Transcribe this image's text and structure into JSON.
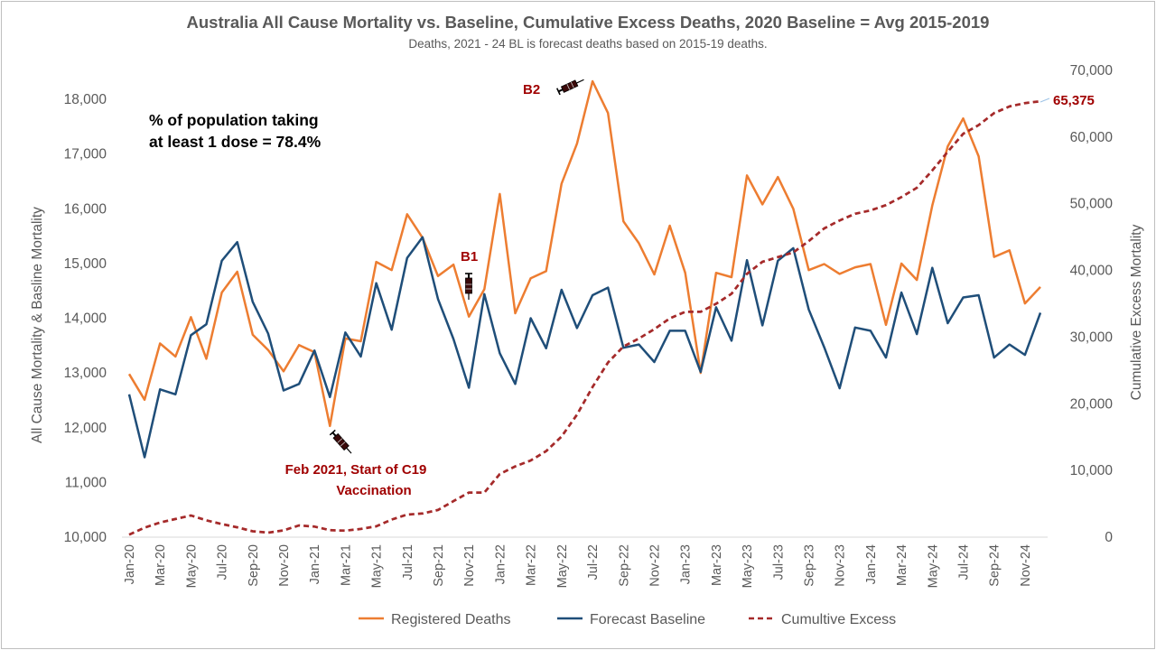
{
  "chart_data": {
    "type": "line",
    "title": "Australia All Cause Mortality vs. Baseline, Cumulative Excess Deaths, 2020 Baseline = Avg 2015-2019",
    "subtitle": "Deaths, 2021 - 24 BL is forecast deaths based on 2015-19 deaths.",
    "ylabel": "All Cause Mortality & Basline Mortality",
    "y2label": "Cumulative Excess Mortality",
    "ylim": [
      10000,
      18500
    ],
    "y2lim": [
      0,
      70000
    ],
    "yticks": [
      "10,000",
      "11,000",
      "12,000",
      "13,000",
      "14,000",
      "15,000",
      "16,000",
      "17,000",
      "18,000"
    ],
    "y2ticks": [
      "0",
      "10,000",
      "20,000",
      "30,000",
      "40,000",
      "50,000",
      "60,000",
      "70,000"
    ],
    "grid": false,
    "legend_position": "bottom",
    "x": [
      "Jan-20",
      "Feb-20",
      "Mar-20",
      "Apr-20",
      "May-20",
      "Jun-20",
      "Jul-20",
      "Aug-20",
      "Sep-20",
      "Oct-20",
      "Nov-20",
      "Dec-20",
      "Jan-21",
      "Feb-21",
      "Mar-21",
      "Apr-21",
      "May-21",
      "Jun-21",
      "Jul-21",
      "Aug-21",
      "Sep-21",
      "Oct-21",
      "Nov-21",
      "Dec-21",
      "Jan-22",
      "Feb-22",
      "Mar-22",
      "Apr-22",
      "May-22",
      "Jun-22",
      "Jul-22",
      "Aug-22",
      "Sep-22",
      "Oct-22",
      "Nov-22",
      "Dec-22",
      "Jan-23",
      "Feb-23",
      "Mar-23",
      "Apr-23",
      "May-23",
      "Jun-23",
      "Jul-23",
      "Aug-23",
      "Sep-23",
      "Oct-23",
      "Nov-23",
      "Dec-23",
      "Jan-24",
      "Feb-24",
      "Mar-24",
      "Apr-24",
      "May-24",
      "Jun-24",
      "Jul-24",
      "Aug-24",
      "Sep-24",
      "Oct-24",
      "Nov-24",
      "Dec-24"
    ],
    "xticks": [
      "Jan-20",
      "Mar-20",
      "May-20",
      "Jul-20",
      "Sep-20",
      "Nov-20",
      "Jan-21",
      "Mar-21",
      "May-21",
      "Jul-21",
      "Sep-21",
      "Nov-21",
      "Jan-22",
      "Mar-22",
      "May-22",
      "Jul-22",
      "Sep-22",
      "Nov-22",
      "Jan-23",
      "Mar-23",
      "May-23",
      "Jul-23",
      "Sep-23",
      "Nov-23",
      "Jan-24",
      "Mar-24",
      "May-24",
      "Jul-24",
      "Sep-24",
      "Nov-24"
    ],
    "series": [
      {
        "name": "Registered Deaths",
        "axis": "left",
        "color": "#ed7d31",
        "style": "solid",
        "values": [
          12980,
          12510,
          13540,
          13300,
          14020,
          13260,
          14470,
          14850,
          13700,
          13420,
          13030,
          13510,
          13380,
          12030,
          13630,
          13580,
          15030,
          14880,
          15900,
          15470,
          14770,
          14980,
          14030,
          14530,
          16270,
          14090,
          14730,
          14860,
          16460,
          17190,
          18330,
          17750,
          15770,
          15370,
          14800,
          15690,
          14830,
          13000,
          14830,
          14750,
          16610,
          16080,
          16580,
          16000,
          14880,
          14990,
          14810,
          14930,
          14990,
          13880,
          15000,
          14700,
          16060,
          17140,
          17650,
          16960,
          15120,
          15240,
          14270,
          14570
        ]
      },
      {
        "name": "Forecast Baseline",
        "axis": "left",
        "color": "#1f4e79",
        "style": "solid",
        "values": [
          12610,
          11460,
          12700,
          12610,
          13690,
          13890,
          15050,
          15390,
          14300,
          13720,
          12680,
          12800,
          13410,
          12560,
          13740,
          13300,
          14640,
          13790,
          15100,
          15480,
          14350,
          13620,
          12730,
          14440,
          13360,
          12800,
          14000,
          13450,
          14520,
          13820,
          14420,
          14560,
          13460,
          13520,
          13200,
          13770,
          13770,
          13020,
          14200,
          13590,
          15060,
          13870,
          15050,
          15280,
          14160,
          13470,
          12720,
          13830,
          13770,
          13280,
          14470,
          13710,
          14920,
          13910,
          14380,
          14420,
          13280,
          13520,
          13330,
          14100
        ]
      },
      {
        "name": "Cumultive Excess",
        "axis": "right",
        "color": "#a52a2a",
        "style": "dashed",
        "values": [
          370,
          1420,
          2200,
          2720,
          3250,
          2520,
          1970,
          1470,
          880,
          680,
          1010,
          1760,
          1580,
          1040,
          980,
          1230,
          1630,
          2640,
          3380,
          3550,
          4070,
          5400,
          6690,
          6690,
          9460,
          10620,
          11490,
          12900,
          15090,
          18370,
          22520,
          26190,
          28590,
          29790,
          31200,
          32800,
          33800,
          33800,
          35000,
          36500,
          39500,
          41300,
          42000,
          42700,
          44400,
          46300,
          47500,
          48500,
          49000,
          49800,
          51000,
          52400,
          55000,
          57800,
          60500,
          61800,
          63600,
          64600,
          65100,
          65375
        ]
      }
    ],
    "annotations": {
      "dose_note_line1": "% of population taking",
      "dose_note_line2": "at least 1 dose = 78.4%",
      "vax_start_line1": "Feb 2021, Start of C19",
      "vax_start_line2": "Vaccination",
      "b1": "B1",
      "b2": "B2",
      "end_label": "65,375"
    },
    "icons": [
      "syringe-icon",
      "syringe-icon",
      "syringe-icon"
    ]
  }
}
